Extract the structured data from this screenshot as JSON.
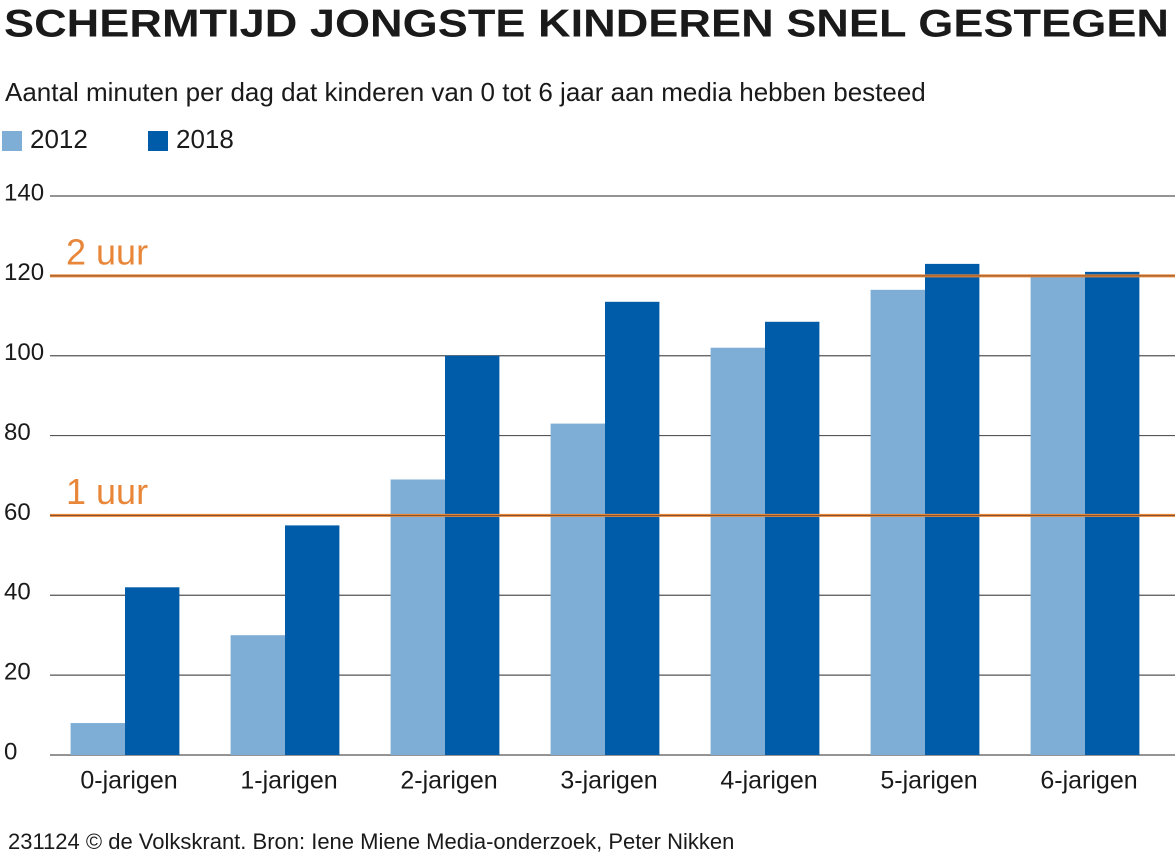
{
  "chart_data": {
    "type": "bar",
    "title": "SCHERMTIJD JONGSTE KINDEREN SNEL GESTEGEN",
    "subtitle": "Aantal minuten per dag dat kinderen van 0 tot 6 jaar aan media hebben besteed",
    "categories": [
      "0-jarigen",
      "1-jarigen",
      "2-jarigen",
      "3-jarigen",
      "4-jarigen",
      "5-jarigen",
      "6-jarigen"
    ],
    "series": [
      {
        "name": "2012",
        "color": "#7eadd6",
        "values": [
          8,
          30,
          69,
          83,
          102,
          116.5,
          120
        ]
      },
      {
        "name": "2018",
        "color": "#005ca9",
        "values": [
          42,
          57.5,
          100,
          113.5,
          108.5,
          123,
          121
        ]
      }
    ],
    "ylim": [
      0,
      140
    ],
    "yticks": [
      0,
      20,
      40,
      60,
      80,
      100,
      120,
      140
    ],
    "grid": true,
    "reference_lines": [
      {
        "value": 60,
        "label": "1 uur",
        "color": "#e8873a"
      },
      {
        "value": 120,
        "label": "2 uur",
        "color": "#e8873a"
      }
    ],
    "source": "231124 © de Volkskrant. Bron: Iene Miene Media-onderzoek, Peter Nikken"
  }
}
